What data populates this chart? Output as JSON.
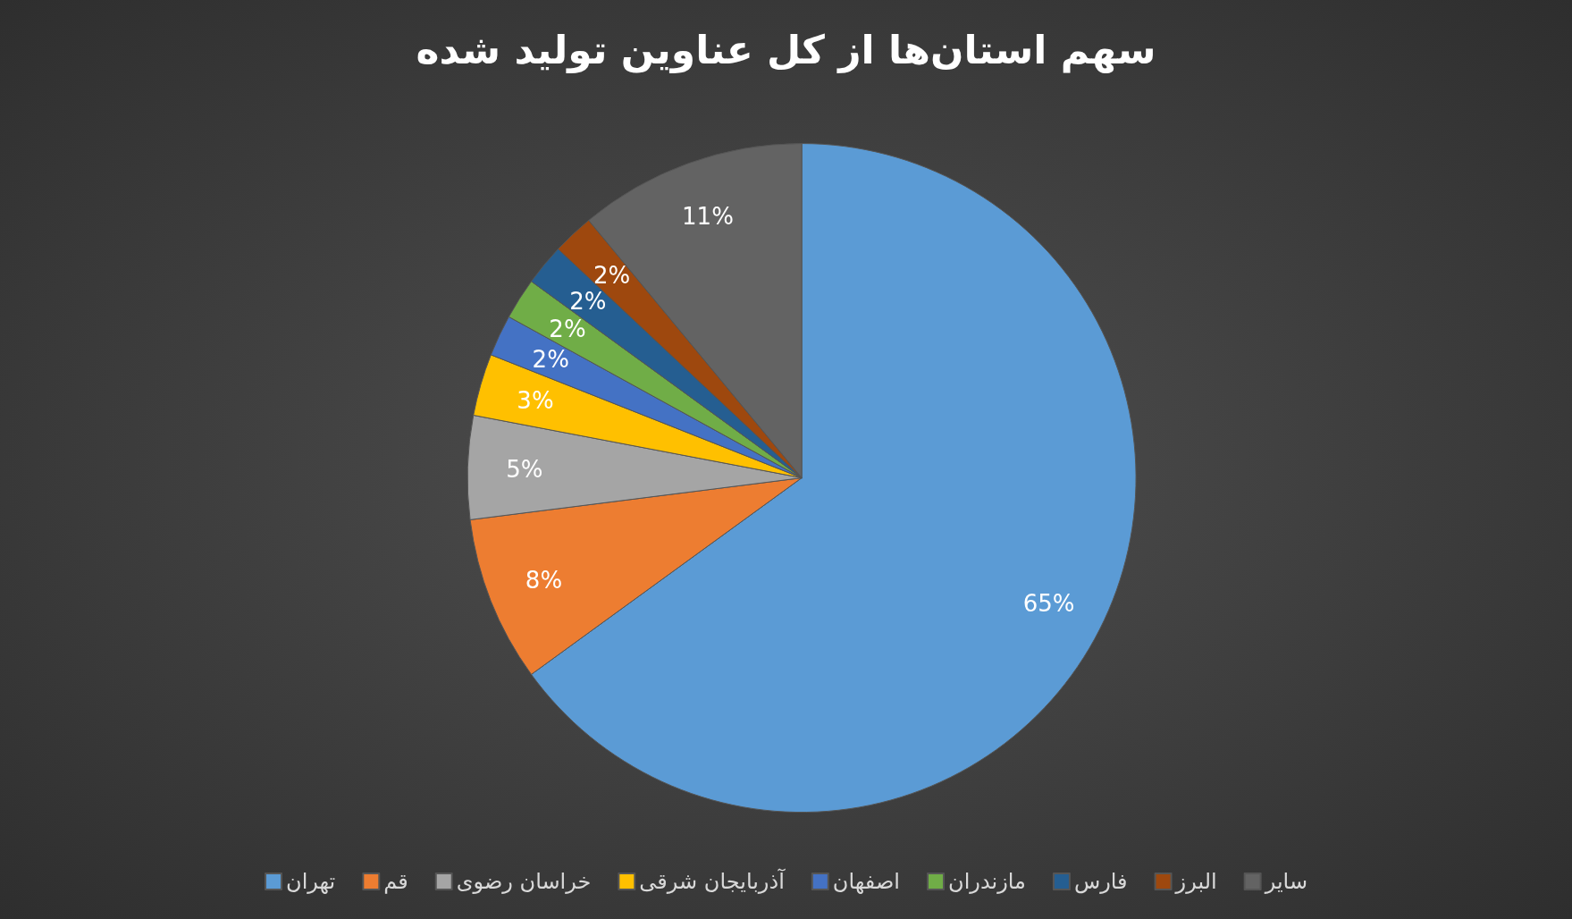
{
  "chart_data": {
    "type": "pie",
    "title": "سهم استان‌ها از کل عناوین تولید شده",
    "categories": [
      "تهران",
      "قم",
      "خراسان رضوی",
      "آذربایجان شرقی",
      "اصفهان",
      "مازندران",
      "فارس",
      "البرز",
      "سایر"
    ],
    "values": [
      65,
      8,
      5,
      3,
      2,
      2,
      2,
      2,
      11
    ],
    "colors": [
      "#5b9bd5",
      "#ed7d31",
      "#a5a5a5",
      "#ffc000",
      "#4472c4",
      "#70ad47",
      "#255e91",
      "#9e480e",
      "#636363"
    ],
    "value_labels": [
      "65%",
      "8%",
      "5%",
      "3%",
      "2%",
      "2%",
      "2%",
      "2%",
      "11%"
    ],
    "legend": "bottom"
  }
}
